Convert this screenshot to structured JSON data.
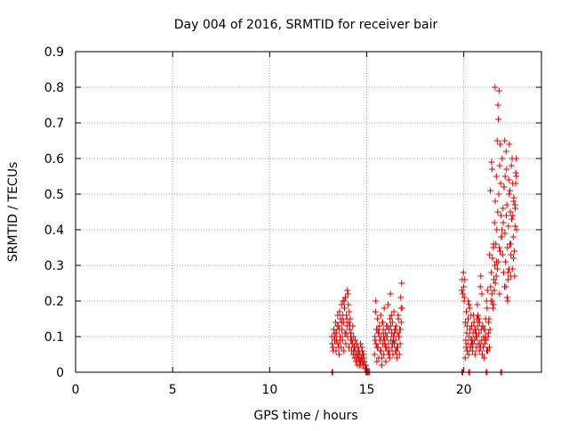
{
  "chart_data": {
    "type": "scatter",
    "title": "Day 004 of 2016, SRMTID for receiver bair",
    "xlabel": "GPS time / hours",
    "ylabel": "SRMTID / TECUs",
    "xlim": [
      0,
      24
    ],
    "ylim": [
      0,
      0.9
    ],
    "xticks": [
      0,
      5,
      10,
      15,
      20
    ],
    "yticks": [
      0,
      0.1,
      0.2,
      0.3,
      0.4,
      0.5,
      0.6,
      0.7,
      0.8,
      0.9
    ],
    "grid": true,
    "legend": "none",
    "marker": "+",
    "color": "#dd0000",
    "series": [
      {
        "x": [
          13.2,
          13.25,
          13.3,
          13.35,
          13.4,
          13.42,
          13.45,
          13.5,
          13.52,
          13.55,
          13.58,
          13.6,
          13.62,
          13.65,
          13.68,
          13.7,
          13.72,
          13.75,
          13.78,
          13.8,
          13.82,
          13.85,
          13.88,
          13.9,
          13.92,
          13.95,
          13.98,
          14.0,
          14.02,
          14.05,
          14.08,
          14.1,
          14.12,
          14.15,
          14.18,
          14.2,
          14.22,
          14.25,
          14.28,
          14.3,
          14.32,
          14.35,
          14.38,
          14.4,
          14.42,
          14.45,
          14.48,
          14.5,
          14.52,
          14.55,
          14.58,
          14.6,
          14.62,
          14.65,
          14.68,
          14.7,
          14.72,
          14.75,
          14.78,
          14.8,
          14.82,
          14.85,
          14.88,
          14.9,
          14.95,
          15.0,
          13.22,
          13.32,
          13.48,
          13.63,
          13.77,
          13.93,
          14.07,
          14.23,
          14.37,
          14.53,
          14.67,
          14.83,
          13.28,
          13.44,
          13.59,
          13.74,
          13.86,
          13.97,
          14.13,
          14.27,
          14.43,
          14.57,
          14.73,
          14.87,
          13.38,
          13.56,
          13.71,
          13.84,
          14.03,
          14.17,
          14.33,
          14.47,
          14.63,
          14.77,
          15.4,
          15.42,
          15.45,
          15.48,
          15.5,
          15.52,
          15.55,
          15.58,
          15.6,
          15.62,
          15.65,
          15.68,
          15.7,
          15.72,
          15.75,
          15.78,
          15.8,
          15.82,
          15.85,
          15.88,
          15.9,
          15.92,
          15.95,
          15.98,
          16.0,
          16.02,
          16.05,
          16.08,
          16.1,
          16.12,
          16.15,
          16.18,
          16.2,
          16.22,
          16.25,
          16.28,
          16.3,
          16.32,
          16.35,
          16.38,
          16.4,
          16.42,
          16.45,
          16.48,
          16.5,
          16.52,
          16.55,
          16.58,
          16.6,
          16.62,
          16.65,
          16.68,
          16.7,
          16.72,
          16.75,
          16.78,
          16.8,
          16.82,
          15.43,
          15.53,
          15.63,
          15.73,
          15.83,
          15.93,
          16.03,
          16.13,
          16.23,
          16.33,
          16.43,
          16.53,
          16.63,
          16.73,
          15.47,
          15.57,
          15.67,
          15.77,
          15.87,
          15.97,
          16.07,
          16.17,
          16.27,
          16.37,
          16.47,
          16.57,
          16.67,
          16.77,
          19.9,
          19.92,
          19.95,
          19.98,
          20.0,
          20.02,
          20.05,
          20.08,
          20.1,
          20.12,
          20.15,
          20.18,
          20.2,
          20.22,
          20.25,
          20.28,
          20.3,
          20.32,
          20.35,
          20.38,
          20.4,
          20.42,
          20.45,
          20.48,
          20.5,
          20.52,
          20.55,
          20.58,
          20.6,
          20.62,
          20.65,
          20.68,
          20.7,
          20.72,
          20.75,
          20.78,
          20.8,
          20.82,
          20.85,
          20.88,
          20.9,
          20.92,
          20.95,
          20.98,
          21.0,
          21.02,
          21.05,
          21.08,
          21.1,
          21.12,
          21.15,
          21.18,
          21.2,
          21.22,
          21.25,
          21.28,
          20.03,
          20.13,
          20.23,
          20.33,
          20.43,
          20.53,
          20.63,
          20.73,
          20.83,
          20.93,
          21.03,
          21.13,
          21.23,
          20.07,
          20.17,
          20.27,
          20.37,
          20.47,
          20.57,
          20.67,
          20.77,
          20.87,
          20.97,
          21.07,
          21.17,
          21.27,
          21.3,
          21.32,
          21.35,
          21.38,
          21.4,
          21.42,
          21.45,
          21.48,
          21.5,
          21.52,
          21.55,
          21.58,
          21.6,
          21.62,
          21.65,
          21.68,
          21.7,
          21.72,
          21.75,
          21.78,
          21.8,
          21.82,
          21.85,
          21.88,
          21.9,
          21.92,
          21.95,
          21.98,
          22.0,
          22.02,
          22.05,
          22.08,
          22.1,
          22.12,
          22.15,
          22.18,
          22.2,
          22.22,
          22.25,
          22.28,
          22.3,
          22.32,
          22.35,
          22.38,
          22.4,
          22.42,
          22.45,
          22.48,
          22.5,
          22.52,
          22.55,
          22.58,
          22.6,
          22.62,
          22.65,
          22.68,
          22.7,
          22.72,
          21.33,
          21.43,
          21.53,
          21.63,
          21.73,
          21.83,
          21.93,
          22.03,
          22.13,
          22.23,
          22.33,
          22.43,
          22.53,
          22.63,
          21.37,
          21.47,
          21.57,
          21.67,
          21.77,
          21.87,
          21.97,
          22.07,
          22.17,
          22.27,
          22.37,
          22.47,
          22.57,
          22.67,
          21.46,
          21.54,
          21.61,
          21.69,
          21.76,
          21.84,
          22.11,
          22.19,
          22.26,
          22.34,
          22.41,
          22.49,
          22.56,
          22.64,
          22.71
        ],
        "y": [
          0.1,
          0.07,
          0.12,
          0.09,
          0.14,
          0.06,
          0.11,
          0.16,
          0.08,
          0.13,
          0.05,
          0.17,
          0.1,
          0.15,
          0.07,
          0.19,
          0.12,
          0.09,
          0.2,
          0.14,
          0.06,
          0.18,
          0.11,
          0.21,
          0.08,
          0.16,
          0.13,
          0.23,
          0.1,
          0.19,
          0.07,
          0.17,
          0.12,
          0.15,
          0.09,
          0.11,
          0.06,
          0.08,
          0.13,
          0.05,
          0.1,
          0.07,
          0.04,
          0.09,
          0.06,
          0.03,
          0.08,
          0.05,
          0.02,
          0.07,
          0.04,
          0.06,
          0.03,
          0.05,
          0.08,
          0.02,
          0.04,
          0.07,
          0.03,
          0.05,
          0.02,
          0.04,
          0.03,
          0.01,
          0.02,
          0.01,
          0.08,
          0.1,
          0.13,
          0.09,
          0.16,
          0.11,
          0.14,
          0.09,
          0.07,
          0.04,
          0.03,
          0.05,
          0.06,
          0.09,
          0.12,
          0.1,
          0.18,
          0.15,
          0.13,
          0.08,
          0.05,
          0.06,
          0.04,
          0.03,
          0.11,
          0.07,
          0.14,
          0.2,
          0.22,
          0.1,
          0.06,
          0.08,
          0.02,
          0.06,
          0.05,
          0.1,
          0.17,
          0.08,
          0.12,
          0.03,
          0.15,
          0.07,
          0.11,
          0.04,
          0.13,
          0.09,
          0.06,
          0.16,
          0.1,
          0.02,
          0.14,
          0.08,
          0.12,
          0.05,
          0.18,
          0.09,
          0.11,
          0.03,
          0.07,
          0.13,
          0.1,
          0.06,
          0.19,
          0.08,
          0.12,
          0.04,
          0.15,
          0.22,
          0.09,
          0.11,
          0.07,
          0.14,
          0.05,
          0.1,
          0.17,
          0.08,
          0.12,
          0.06,
          0.09,
          0.13,
          0.04,
          0.11,
          0.07,
          0.16,
          0.1,
          0.05,
          0.12,
          0.08,
          0.21,
          0.14,
          0.25,
          0.18,
          0.09,
          0.07,
          0.11,
          0.06,
          0.14,
          0.08,
          0.1,
          0.05,
          0.13,
          0.08,
          0.11,
          0.06,
          0.15,
          0.12,
          0.2,
          0.12,
          0.09,
          0.04,
          0.1,
          0.07,
          0.13,
          0.06,
          0.16,
          0.09,
          0.12,
          0.07,
          0.1,
          0.18,
          0.23,
          0.26,
          0.22,
          0.28,
          0.24,
          0.2,
          0.26,
          0.14,
          0.09,
          0.07,
          0.11,
          0.06,
          0.08,
          0.15,
          0.05,
          0.1,
          0.18,
          0.12,
          0.07,
          0.09,
          0.13,
          0.08,
          0.06,
          0.11,
          0.16,
          0.14,
          0.09,
          0.05,
          0.12,
          0.1,
          0.07,
          0.15,
          0.19,
          0.13,
          0.08,
          0.11,
          0.06,
          0.14,
          0.24,
          0.27,
          0.12,
          0.09,
          0.05,
          0.13,
          0.07,
          0.1,
          0.04,
          0.08,
          0.12,
          0.15,
          0.09,
          0.06,
          0.18,
          0.23,
          0.1,
          0.14,
          0.21,
          0.17,
          0.2,
          0.07,
          0.09,
          0.14,
          0.11,
          0.16,
          0.08,
          0.22,
          0.12,
          0.1,
          0.06,
          0.04,
          0.13,
          0.19,
          0.16,
          0.08,
          0.12,
          0.1,
          0.15,
          0.07,
          0.13,
          0.09,
          0.2,
          0.11,
          0.15,
          0.07,
          0.12,
          0.24,
          0.2,
          0.28,
          0.22,
          0.32,
          0.18,
          0.35,
          0.26,
          0.42,
          0.3,
          0.48,
          0.36,
          0.55,
          0.4,
          0.65,
          0.45,
          0.71,
          0.5,
          0.79,
          0.58,
          0.64,
          0.53,
          0.44,
          0.38,
          0.6,
          0.33,
          0.46,
          0.28,
          0.52,
          0.24,
          0.39,
          0.31,
          0.62,
          0.57,
          0.47,
          0.35,
          0.26,
          0.41,
          0.54,
          0.64,
          0.51,
          0.45,
          0.36,
          0.58,
          0.43,
          0.29,
          0.53,
          0.38,
          0.49,
          0.34,
          0.27,
          0.46,
          0.56,
          0.6,
          0.4,
          0.33,
          0.59,
          0.19,
          0.25,
          0.29,
          0.35,
          0.38,
          0.42,
          0.55,
          0.21,
          0.29,
          0.33,
          0.44,
          0.47,
          0.51,
          0.2,
          0.23,
          0.27,
          0.31,
          0.34,
          0.4,
          0.52,
          0.24,
          0.28,
          0.36,
          0.43,
          0.48,
          0.53,
          0.57,
          0.36,
          0.8,
          0.31,
          0.75,
          0.22,
          0.65,
          0.44,
          0.2,
          0.5,
          0.27,
          0.6,
          0.32,
          0.41,
          0.55
        ]
      },
      {
        "x": [
          13.2,
          13.25,
          14.95,
          15.0,
          15.05,
          15.1,
          15.15,
          19.9,
          19.95,
          20.25,
          20.3,
          21.15,
          21.2,
          21.9,
          21.95
        ],
        "y": [
          0,
          0,
          0,
          0,
          0,
          0,
          0,
          0,
          0,
          0,
          0,
          0,
          0,
          0,
          0
        ]
      }
    ]
  }
}
